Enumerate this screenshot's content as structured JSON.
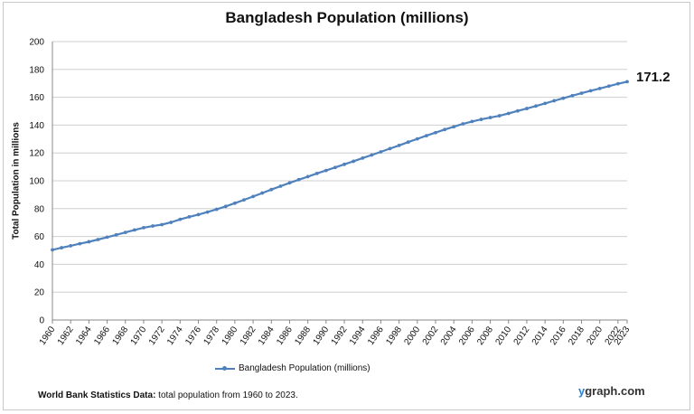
{
  "chart_data": {
    "type": "line",
    "title": "Bangladesh Population (millions)",
    "ylabel": "Total Population in millions",
    "xlabel": "",
    "ylim": [
      0,
      200
    ],
    "yticks": [
      0,
      20,
      40,
      60,
      80,
      100,
      120,
      140,
      160,
      180,
      200
    ],
    "xticks": [
      "1960",
      "1962",
      "1964",
      "1966",
      "1968",
      "1970",
      "1972",
      "1974",
      "1976",
      "1978",
      "1980",
      "1982",
      "1984",
      "1986",
      "1988",
      "1990",
      "1992",
      "1994",
      "1996",
      "1998",
      "2000",
      "2002",
      "2004",
      "2006",
      "2008",
      "2010",
      "2012",
      "2014",
      "2016",
      "2018",
      "2020",
      "2022",
      "2023"
    ],
    "grid": true,
    "legend_position": "bottom",
    "series_color": "#4f81bd",
    "series": [
      {
        "name": "Bangladesh Population (millions)",
        "x": [
          1960,
          1961,
          1962,
          1963,
          1964,
          1965,
          1966,
          1967,
          1968,
          1969,
          1970,
          1971,
          1972,
          1973,
          1974,
          1975,
          1976,
          1977,
          1978,
          1979,
          1980,
          1981,
          1982,
          1983,
          1984,
          1985,
          1986,
          1987,
          1988,
          1989,
          1990,
          1991,
          1992,
          1993,
          1994,
          1995,
          1996,
          1997,
          1998,
          1999,
          2000,
          2001,
          2002,
          2003,
          2004,
          2005,
          2006,
          2007,
          2008,
          2009,
          2010,
          2011,
          2012,
          2013,
          2014,
          2015,
          2016,
          2017,
          2018,
          2019,
          2020,
          2021,
          2022,
          2023
        ],
        "values": [
          50.4,
          51.9,
          53.3,
          54.8,
          56.2,
          57.8,
          59.5,
          61.2,
          62.9,
          64.7,
          66.3,
          67.5,
          68.5,
          70.1,
          72.3,
          74.1,
          75.7,
          77.5,
          79.5,
          81.6,
          83.9,
          86.3,
          88.7,
          91.2,
          93.7,
          96.1,
          98.5,
          100.8,
          103.0,
          105.3,
          107.4,
          109.6,
          111.8,
          114.0,
          116.3,
          118.5,
          120.8,
          123.1,
          125.4,
          127.8,
          130.1,
          132.4,
          134.6,
          136.8,
          138.8,
          140.9,
          142.6,
          144.1,
          145.4,
          146.7,
          148.4,
          150.2,
          151.9,
          153.7,
          155.6,
          157.5,
          159.3,
          161.2,
          162.9,
          164.7,
          166.3,
          168.0,
          169.7,
          171.2
        ]
      }
    ],
    "end_label": "171.2"
  },
  "legend": {
    "label": "Bangladesh Population (millions)"
  },
  "footer": {
    "source_bold": "World Bank Statistics Data:",
    "source_text": " total population from 1960 to 2023."
  },
  "brand": {
    "y": "y",
    "rest": "graph.com"
  }
}
